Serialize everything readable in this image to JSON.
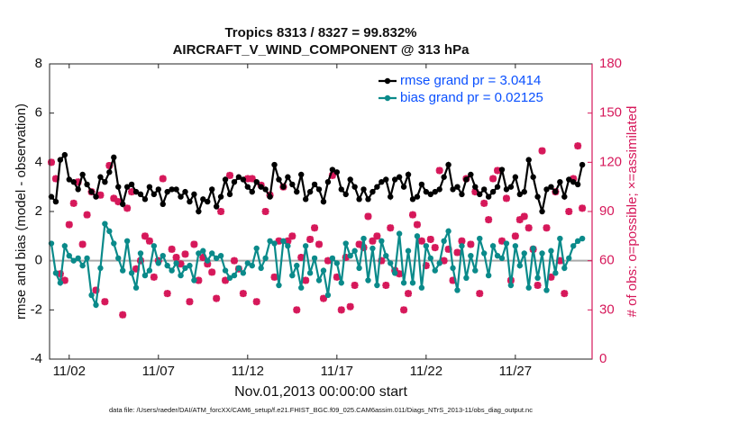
{
  "chart_data": {
    "type": "line",
    "title": "Tropics 8313 / 8327 = 99.832%",
    "subtitle": "AIRCRAFT_V_WIND_COMPONENT @ 313 hPa",
    "x_label": "Nov.01,2013 00:00:00 start",
    "y_label": "rmse and bias (model - observation)",
    "y2_label": "# of obs: o=possible; ×=assimilated",
    "footnote": "data file: /Users/raeder/DAI/ATM_forcXX/CAM6_setup/f.e21.FHIST_BGC.f09_025.CAM6assim.011/Diags_NTrS_2013-11/obs_diag_output.nc",
    "xlim": [
      -0.1,
      30.3
    ],
    "xticks": [
      {
        "value": 1,
        "label": "11/02"
      },
      {
        "value": 6,
        "label": "11/07"
      },
      {
        "value": 11,
        "label": "11/12"
      },
      {
        "value": 16,
        "label": "11/17"
      },
      {
        "value": 21,
        "label": "11/22"
      },
      {
        "value": 26,
        "label": "11/27"
      }
    ],
    "ylim": [
      -4,
      8
    ],
    "yticks": [
      -4,
      -2,
      0,
      2,
      4,
      6,
      8
    ],
    "y2lim": [
      0,
      180
    ],
    "y2ticks": [
      0,
      30,
      60,
      90,
      120,
      150,
      180
    ],
    "y2_color": "#d6185a",
    "legend_color": "#0a50ff",
    "legend_position": "upper right",
    "x": [
      0,
      0.25,
      0.5,
      0.75,
      1,
      1.25,
      1.5,
      1.75,
      2,
      2.25,
      2.5,
      2.75,
      3,
      3.25,
      3.5,
      3.75,
      4,
      4.25,
      4.5,
      4.75,
      5,
      5.25,
      5.5,
      5.75,
      6,
      6.25,
      6.5,
      6.75,
      7,
      7.25,
      7.5,
      7.75,
      8,
      8.25,
      8.5,
      8.75,
      9,
      9.25,
      9.5,
      9.75,
      10,
      10.25,
      10.5,
      10.75,
      11,
      11.25,
      11.5,
      11.75,
      12,
      12.25,
      12.5,
      12.75,
      13,
      13.25,
      13.5,
      13.75,
      14,
      14.25,
      14.5,
      14.75,
      15,
      15.25,
      15.5,
      15.75,
      16,
      16.25,
      16.5,
      16.75,
      17,
      17.25,
      17.5,
      17.75,
      18,
      18.25,
      18.5,
      18.75,
      19,
      19.25,
      19.5,
      19.75,
      20,
      20.25,
      20.5,
      20.75,
      21,
      21.25,
      21.5,
      21.75,
      22,
      22.25,
      22.5,
      22.75,
      23,
      23.25,
      23.5,
      23.75,
      24,
      24.25,
      24.5,
      24.75,
      25,
      25.25,
      25.5,
      25.75,
      26,
      26.25,
      26.5,
      26.75,
      27,
      27.25,
      27.5,
      27.75,
      28,
      28.25,
      28.5,
      28.75,
      29,
      29.25,
      29.5,
      29.75
    ],
    "series": [
      {
        "name": "rmse grand pr = 3.0414",
        "color": "#000000",
        "marker": "circle",
        "values": [
          2.6,
          2.4,
          4.1,
          4.3,
          3.3,
          3.2,
          2.9,
          3.5,
          3.1,
          2.8,
          2.6,
          3.4,
          3.2,
          3.6,
          4.2,
          3.0,
          2.3,
          3.0,
          3.1,
          2.8,
          2.7,
          2.5,
          3.0,
          2.7,
          2.9,
          2.3,
          2.8,
          2.9,
          2.9,
          2.6,
          2.8,
          2.4,
          2.7,
          2.0,
          2.5,
          2.4,
          2.9,
          2.2,
          2.6,
          3.3,
          2.7,
          3.2,
          3.4,
          3.3,
          3.0,
          2.8,
          3.2,
          3.0,
          2.9,
          2.6,
          3.9,
          3.3,
          3.0,
          3.4,
          3.1,
          2.8,
          3.5,
          2.5,
          2.8,
          3.1,
          2.9,
          2.4,
          3.2,
          3.7,
          3.6,
          2.9,
          2.7,
          3.3,
          3.0,
          2.5,
          2.9,
          2.5,
          2.8,
          3.0,
          3.2,
          3.3,
          2.6,
          3.3,
          3.4,
          3.0,
          3.5,
          2.5,
          2.6,
          3.1,
          2.8,
          2.7,
          2.8,
          2.9,
          3.4,
          3.9,
          2.9,
          3.0,
          2.7,
          3.3,
          3.5,
          3.0,
          2.7,
          2.9,
          2.6,
          2.8,
          3.0,
          3.7,
          2.9,
          3.0,
          3.4,
          2.7,
          2.8,
          4.1,
          3.4,
          2.6,
          2.0,
          2.9,
          3.0,
          2.8,
          3.2,
          2.6,
          3.3,
          3.2,
          3.1,
          3.9
        ]
      },
      {
        "name": "bias grand pr = 0.02125",
        "color": "#0a8a8a",
        "marker": "circle",
        "values": [
          0.7,
          -0.5,
          -0.9,
          0.6,
          0.2,
          0.0,
          0.1,
          -0.2,
          0.1,
          -1.4,
          -1.8,
          -0.3,
          1.5,
          1.2,
          0.7,
          0.1,
          -0.4,
          0.8,
          -0.5,
          -1.1,
          0.3,
          -0.6,
          -0.4,
          0.6,
          -0.1,
          0.2,
          -0.2,
          -0.4,
          -0.1,
          -0.6,
          -0.3,
          -0.2,
          -0.8,
          0.3,
          0.4,
          0.0,
          0.3,
          0.1,
          0.2,
          -0.4,
          -0.7,
          -0.6,
          -0.3,
          -0.5,
          -0.1,
          -0.2,
          0.5,
          -0.3,
          0.1,
          0.8,
          0.7,
          -1.0,
          0.8,
          0.6,
          -0.6,
          -0.2,
          -1.1,
          0.6,
          -0.5,
          0.1,
          -0.8,
          -0.4,
          -1.4,
          0.1,
          -0.1,
          -0.9,
          0.7,
          0.2,
          0.4,
          -0.3,
          0.9,
          -0.8,
          0.5,
          -1.0,
          0.8,
          0.2,
          -0.1,
          -0.5,
          1.1,
          -0.9,
          0.4,
          -0.9,
          1.0,
          -1.1,
          0.6,
          0.1,
          -0.4,
          -0.1,
          0.8,
          1.2,
          -0.3,
          -1.2,
          0.6,
          -0.7,
          0.2,
          -0.4,
          0.9,
          0.3,
          -0.6,
          0.6,
          0.2,
          0.1,
          0.7,
          -1.0,
          0.6,
          -0.2,
          0.3,
          -1.1,
          0.5,
          -0.7,
          0.3,
          -1.2,
          0.4,
          -0.5,
          0.9,
          -0.3,
          0.1,
          0.6,
          0.8,
          0.9
        ]
      },
      {
        "color": "#d6185a",
        "axis": "y2",
        "marker": "asterisk",
        "values": [
          120,
          110,
          52,
          48,
          82,
          95,
          108,
          70,
          88,
          102,
          42,
          100,
          35,
          118,
          98,
          96,
          27,
          92,
          102,
          55,
          60,
          75,
          72,
          50,
          60,
          110,
          40,
          67,
          62,
          58,
          64,
          35,
          70,
          48,
          62,
          58,
          53,
          37,
          90,
          48,
          112,
          60,
          55,
          40,
          110,
          110,
          35,
          106,
          90,
          100,
          50,
          72,
          105,
          72,
          75,
          30,
          62,
          48,
          73,
          80,
          70,
          37,
          60,
          112,
          50,
          30,
          62,
          32,
          45,
          70,
          68,
          87,
          72,
          75,
          60,
          45,
          80,
          54,
          52,
          30,
          40,
          88,
          82,
          72,
          57,
          73,
          68,
          115,
          60,
          67,
          48,
          65,
          72,
          110,
          70,
          102,
          40,
          95,
          85,
          110,
          115,
          72,
          98,
          48,
          75,
          85,
          87,
          80,
          67,
          45,
          127,
          80,
          50,
          102,
          60,
          40,
          90,
          110,
          130,
          92
        ]
      }
    ]
  }
}
